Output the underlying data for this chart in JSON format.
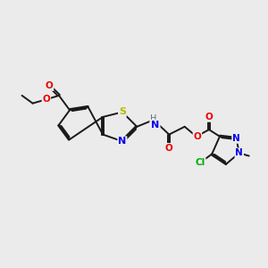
{
  "bg_color": "#ebebeb",
  "bond_color": "#1a1a1a",
  "bond_width": 1.4,
  "atom_colors": {
    "S": "#b8b800",
    "N": "#0000ee",
    "O": "#ee0000",
    "Cl": "#00aa00",
    "C": "#1a1a1a",
    "H": "#607070"
  },
  "figsize": [
    3.0,
    3.0
  ],
  "dpi": 100
}
